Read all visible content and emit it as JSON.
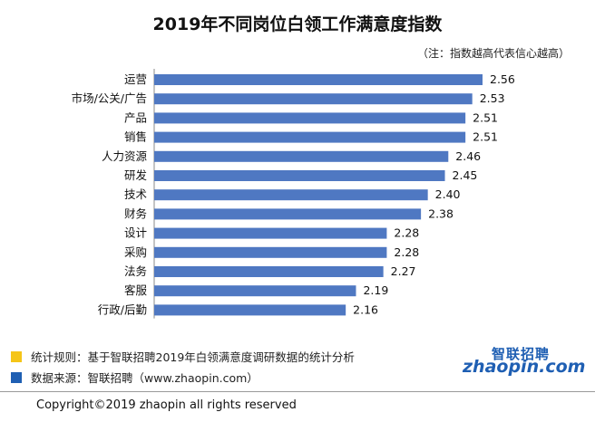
{
  "title": "2019年不同岗位白领工作满意度指数",
  "note": "（注：指数越高代表信心越高）",
  "chart_data": {
    "type": "bar",
    "orientation": "horizontal",
    "title": "2019年不同岗位白领工作满意度指数",
    "categories": [
      "运营",
      "市场/公关/广告",
      "产品",
      "销售",
      "人力资源",
      "研发",
      "技术",
      "财务",
      "设计",
      "采购",
      "法务",
      "客服",
      "行政/后勤"
    ],
    "values": [
      2.56,
      2.53,
      2.51,
      2.51,
      2.46,
      2.45,
      2.4,
      2.38,
      2.28,
      2.28,
      2.27,
      2.19,
      2.16
    ],
    "value_labels": [
      "2.56",
      "2.53",
      "2.51",
      "2.51",
      "2.46",
      "2.45",
      "2.40",
      "2.38",
      "2.28",
      "2.28",
      "2.27",
      "2.19",
      "2.16"
    ],
    "xlabel": "",
    "ylabel": "",
    "grid": false,
    "bar_color": "#4f78c2"
  },
  "legend": [
    {
      "color": "#f5c518",
      "text": "统计规则：基于智联招聘2019年白领满意度调研数据的统计分析"
    },
    {
      "color": "#1f5fb3",
      "text": "数据来源：智联招聘（www.zhaopin.com）"
    }
  ],
  "logo": {
    "cn": "智联招聘",
    "en": "zhaopin.com"
  },
  "copyright": "Copyright©2019 zhaopin all rights reserved"
}
